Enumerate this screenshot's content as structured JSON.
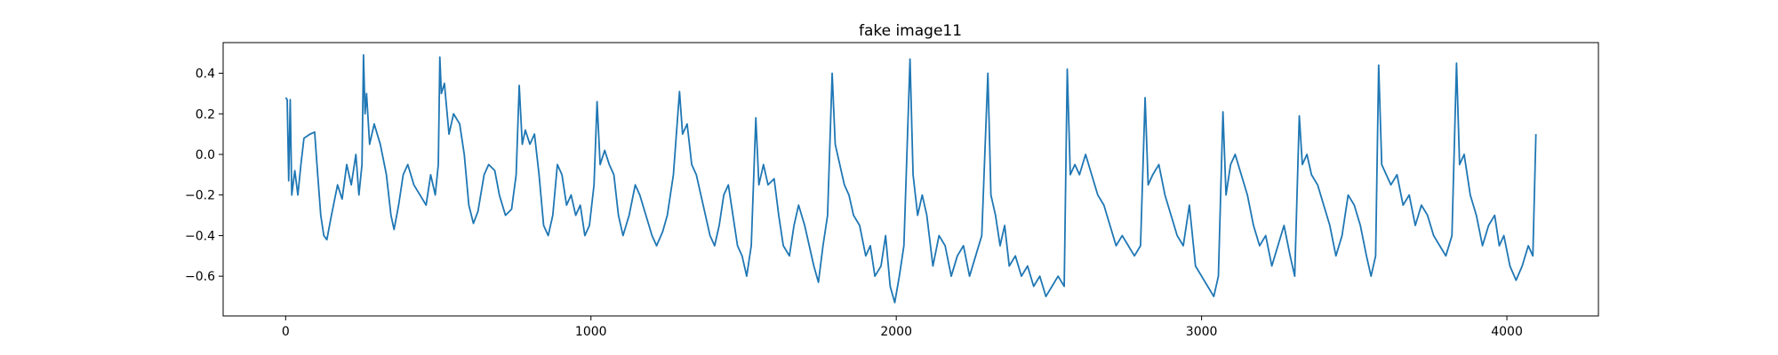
{
  "chart_data": {
    "type": "line",
    "title": "fake image11",
    "color": "#1f77b4",
    "xlim": [
      -204.75,
      4299.75
    ],
    "xticks": [
      0,
      1000,
      2000,
      3000,
      4000
    ],
    "ylim": [
      -0.796,
      0.551
    ],
    "yticks": [
      {
        "value": 0.4,
        "label": "0.4"
      },
      {
        "value": 0.2,
        "label": "0.2"
      },
      {
        "value": 0.0,
        "label": "0.0"
      },
      {
        "value": -0.2,
        "label": "−0.2"
      },
      {
        "value": -0.4,
        "label": "−0.4"
      },
      {
        "value": -0.6,
        "label": "−0.6"
      }
    ],
    "grid": false,
    "x": [
      0,
      5,
      10,
      15,
      20,
      30,
      40,
      50,
      60,
      80,
      95,
      105,
      115,
      125,
      135,
      150,
      170,
      185,
      200,
      215,
      230,
      240,
      250,
      255,
      260,
      265,
      275,
      290,
      310,
      330,
      345,
      355,
      370,
      385,
      400,
      420,
      440,
      460,
      475,
      490,
      500,
      505,
      510,
      520,
      535,
      550,
      570,
      585,
      600,
      615,
      630,
      650,
      665,
      685,
      700,
      720,
      740,
      755,
      765,
      775,
      785,
      800,
      815,
      830,
      845,
      860,
      875,
      890,
      905,
      920,
      935,
      950,
      965,
      980,
      995,
      1010,
      1020,
      1030,
      1045,
      1060,
      1075,
      1090,
      1105,
      1125,
      1145,
      1160,
      1180,
      1200,
      1215,
      1235,
      1250,
      1270,
      1290,
      1300,
      1315,
      1330,
      1345,
      1360,
      1375,
      1390,
      1405,
      1420,
      1435,
      1450,
      1465,
      1480,
      1495,
      1510,
      1525,
      1540,
      1550,
      1565,
      1580,
      1600,
      1615,
      1630,
      1650,
      1665,
      1680,
      1700,
      1715,
      1730,
      1745,
      1760,
      1775,
      1790,
      1800,
      1815,
      1830,
      1845,
      1860,
      1880,
      1900,
      1915,
      1930,
      1950,
      1965,
      1980,
      1995,
      2010,
      2025,
      2045,
      2055,
      2070,
      2085,
      2100,
      2120,
      2140,
      2160,
      2180,
      2200,
      2220,
      2240,
      2260,
      2280,
      2300,
      2310,
      2325,
      2340,
      2355,
      2370,
      2390,
      2410,
      2430,
      2450,
      2470,
      2490,
      2510,
      2530,
      2550,
      2560,
      2570,
      2585,
      2600,
      2620,
      2640,
      2660,
      2680,
      2700,
      2720,
      2740,
      2760,
      2780,
      2800,
      2815,
      2825,
      2840,
      2860,
      2880,
      2900,
      2920,
      2940,
      2960,
      2980,
      3000,
      3020,
      3040,
      3055,
      3070,
      3080,
      3095,
      3110,
      3130,
      3150,
      3170,
      3190,
      3210,
      3230,
      3250,
      3270,
      3290,
      3305,
      3320,
      3330,
      3345,
      3360,
      3380,
      3400,
      3420,
      3440,
      3460,
      3480,
      3500,
      3520,
      3540,
      3555,
      3570,
      3580,
      3590,
      3605,
      3620,
      3640,
      3660,
      3680,
      3700,
      3720,
      3740,
      3760,
      3780,
      3800,
      3820,
      3835,
      3845,
      3860,
      3880,
      3900,
      3920,
      3940,
      3960,
      3975,
      3990,
      4010,
      4030,
      4050,
      4070,
      4085,
      4095
    ],
    "values": [
      0.28,
      0.27,
      -0.13,
      0.27,
      -0.2,
      -0.08,
      -0.2,
      -0.05,
      0.08,
      0.1,
      0.11,
      -0.1,
      -0.3,
      -0.4,
      -0.42,
      -0.3,
      -0.15,
      -0.22,
      -0.05,
      -0.15,
      0.0,
      -0.2,
      -0.05,
      0.49,
      0.2,
      0.3,
      0.05,
      0.15,
      0.05,
      -0.1,
      -0.3,
      -0.37,
      -0.25,
      -0.1,
      -0.05,
      -0.15,
      -0.2,
      -0.25,
      -0.1,
      -0.2,
      -0.05,
      0.48,
      0.3,
      0.35,
      0.1,
      0.2,
      0.15,
      0.0,
      -0.25,
      -0.34,
      -0.28,
      -0.1,
      -0.05,
      -0.08,
      -0.2,
      -0.3,
      -0.27,
      -0.1,
      0.34,
      0.05,
      0.12,
      0.05,
      0.1,
      -0.1,
      -0.35,
      -0.4,
      -0.3,
      -0.05,
      -0.1,
      -0.25,
      -0.2,
      -0.3,
      -0.25,
      -0.4,
      -0.35,
      -0.15,
      0.26,
      -0.05,
      0.02,
      -0.05,
      -0.1,
      -0.3,
      -0.4,
      -0.3,
      -0.15,
      -0.2,
      -0.3,
      -0.4,
      -0.45,
      -0.38,
      -0.3,
      -0.1,
      0.31,
      0.1,
      0.15,
      -0.05,
      -0.1,
      -0.2,
      -0.3,
      -0.4,
      -0.45,
      -0.35,
      -0.2,
      -0.15,
      -0.3,
      -0.45,
      -0.5,
      -0.6,
      -0.45,
      0.18,
      -0.15,
      -0.05,
      -0.15,
      -0.12,
      -0.3,
      -0.45,
      -0.5,
      -0.35,
      -0.25,
      -0.35,
      -0.45,
      -0.55,
      -0.63,
      -0.45,
      -0.3,
      0.4,
      0.05,
      -0.05,
      -0.15,
      -0.2,
      -0.3,
      -0.35,
      -0.5,
      -0.45,
      -0.6,
      -0.55,
      -0.4,
      -0.65,
      -0.73,
      -0.6,
      -0.45,
      0.47,
      -0.1,
      -0.3,
      -0.2,
      -0.3,
      -0.55,
      -0.4,
      -0.45,
      -0.6,
      -0.5,
      -0.45,
      -0.6,
      -0.5,
      -0.4,
      0.4,
      -0.2,
      -0.3,
      -0.45,
      -0.35,
      -0.55,
      -0.5,
      -0.6,
      -0.55,
      -0.65,
      -0.6,
      -0.7,
      -0.65,
      -0.6,
      -0.65,
      0.42,
      -0.1,
      -0.05,
      -0.1,
      0.0,
      -0.1,
      -0.2,
      -0.25,
      -0.35,
      -0.45,
      -0.4,
      -0.45,
      -0.5,
      -0.45,
      0.28,
      -0.15,
      -0.1,
      -0.05,
      -0.2,
      -0.3,
      -0.4,
      -0.45,
      -0.25,
      -0.55,
      -0.6,
      -0.65,
      -0.7,
      -0.6,
      0.21,
      -0.2,
      -0.05,
      0.0,
      -0.1,
      -0.2,
      -0.35,
      -0.45,
      -0.4,
      -0.55,
      -0.45,
      -0.35,
      -0.5,
      -0.6,
      0.19,
      -0.05,
      0.0,
      -0.1,
      -0.15,
      -0.25,
      -0.35,
      -0.5,
      -0.4,
      -0.2,
      -0.25,
      -0.35,
      -0.5,
      -0.6,
      -0.5,
      0.44,
      -0.05,
      -0.1,
      -0.15,
      -0.1,
      -0.25,
      -0.2,
      -0.35,
      -0.25,
      -0.3,
      -0.4,
      -0.45,
      -0.5,
      -0.4,
      0.45,
      -0.05,
      0.0,
      -0.2,
      -0.3,
      -0.45,
      -0.35,
      -0.3,
      -0.45,
      -0.4,
      -0.55,
      -0.62,
      -0.55,
      -0.45,
      -0.5,
      0.1
    ]
  }
}
